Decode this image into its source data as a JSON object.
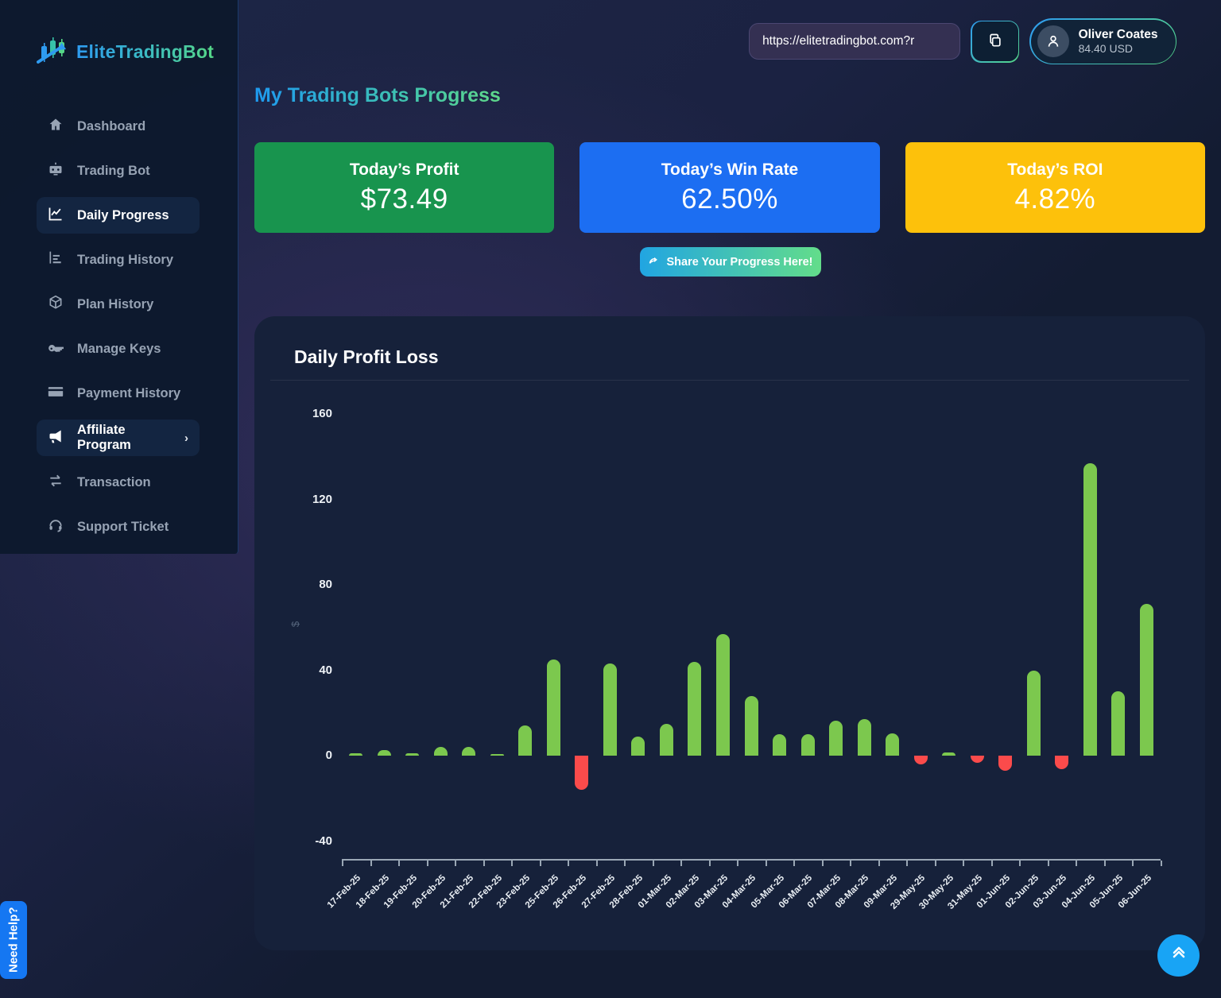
{
  "brand": {
    "name": "EliteTradingBot"
  },
  "topbar": {
    "url_value": "https://elitetradingbot.com?r",
    "copy_icon": "copy-icon",
    "user_name": "Oliver Coates",
    "user_balance": "84.40 USD"
  },
  "sidebar": {
    "items": [
      {
        "label": "Dashboard",
        "icon": "home-icon",
        "active": false
      },
      {
        "label": "Trading Bot",
        "icon": "robot-icon",
        "active": false
      },
      {
        "label": "Daily Progress",
        "icon": "chart-line-icon",
        "active": true
      },
      {
        "label": "Trading History",
        "icon": "bar-chart-icon",
        "active": false
      },
      {
        "label": "Plan History",
        "icon": "cube-icon",
        "active": false
      },
      {
        "label": "Manage Keys",
        "icon": "key-icon",
        "active": false
      },
      {
        "label": "Payment History",
        "icon": "credit-card-icon",
        "active": false
      },
      {
        "label": "Affiliate Program",
        "icon": "megaphone-icon",
        "active": true,
        "chevron": "›"
      },
      {
        "label": "Transaction",
        "icon": "swap-arrows-icon",
        "active": false
      },
      {
        "label": "Support Ticket",
        "icon": "headset-icon",
        "active": false
      }
    ]
  },
  "page": {
    "title": "My Trading Bots Progress"
  },
  "stats": [
    {
      "label": "Today’s Profit",
      "value": "$73.49",
      "color": "#18944e"
    },
    {
      "label": "Today’s Win Rate",
      "value": "62.50%",
      "color": "#1c6ef2"
    },
    {
      "label": "Today’s ROI",
      "value": "4.82%",
      "color": "#fdc10b"
    }
  ],
  "share_button": {
    "label": "Share Your Progress Here!",
    "icon": "share-icon"
  },
  "chart_data": {
    "type": "bar",
    "title": "Daily Profit Loss",
    "xlabel": "",
    "ylabel": "$",
    "ylim": [
      -40,
      160
    ],
    "yticks": [
      160,
      120,
      80,
      40,
      0,
      -40
    ],
    "grid": false,
    "legend": "none",
    "positive_color": "#7cc84e",
    "negative_color": "#fb4b4b",
    "categories": [
      "17-Feb-25",
      "18-Feb-25",
      "19-Feb-25",
      "20-Feb-25",
      "21-Feb-25",
      "22-Feb-25",
      "23-Feb-25",
      "25-Feb-25",
      "26-Feb-25",
      "27-Feb-25",
      "28-Feb-25",
      "01-Mar-25",
      "02-Mar-25",
      "03-Mar-25",
      "04-Mar-25",
      "05-Mar-25",
      "06-Mar-25",
      "07-Mar-25",
      "08-Mar-25",
      "09-Mar-25",
      "29-May-25",
      "30-May-25",
      "31-May-25",
      "01-Jun-25",
      "02-Jun-25",
      "03-Jun-25",
      "04-Jun-25",
      "05-Jun-25",
      "06-Jun-25"
    ],
    "values": [
      1,
      2.5,
      1,
      4,
      4,
      0.3,
      14,
      45,
      -16,
      43,
      9,
      15,
      44,
      57,
      28,
      10,
      10,
      16.5,
      17,
      10.5,
      -4,
      1.5,
      -3.5,
      -7,
      40,
      -6.5,
      137,
      30,
      71
    ]
  },
  "help_button": {
    "label": "Need Help?"
  },
  "scroll_top_button": {
    "icon": "chevrons-up-icon"
  }
}
